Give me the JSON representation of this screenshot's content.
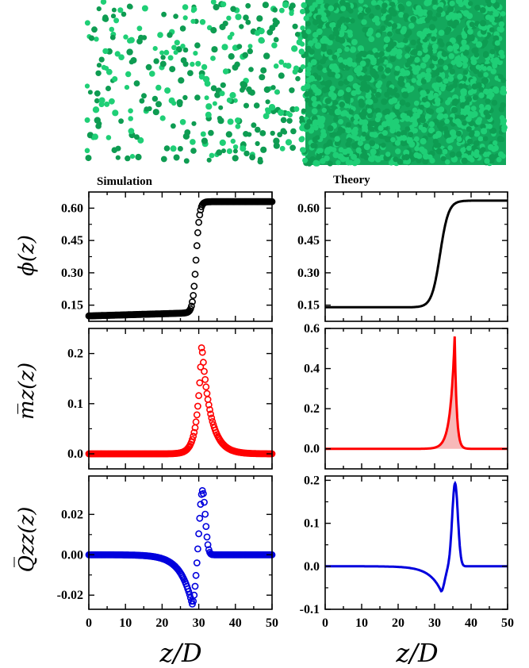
{
  "labels": {
    "simulation": "Simulation",
    "theory": "Theory",
    "xlabel": "z/D"
  },
  "ylabels": {
    "phi": "ϕ(z)",
    "m": "m̅z(z)",
    "q": "Q̅zz(z)"
  },
  "colors": {
    "phi": "#000000",
    "m": "#ff0000",
    "q": "#0000dd",
    "sphere": "#1fcf76",
    "sphere_dark": "#0e9c52"
  },
  "chart_data": [
    {
      "id": "sim-phi",
      "type": "scatter",
      "marker": "open-circle",
      "title": "Simulation",
      "xlabel": "",
      "ylabel": "ϕ(z)",
      "xlim": [
        0,
        50
      ],
      "ylim": [
        0.075,
        0.675
      ],
      "yticks": [
        "0.15",
        "0.30",
        "0.45",
        "0.60"
      ],
      "ytick_values": [
        0.15,
        0.3,
        0.45,
        0.6
      ],
      "profile": {
        "kind": "tanh",
        "low": 0.1,
        "high": 0.63,
        "center": 29.3,
        "width": 0.95,
        "slope": 0.0005
      }
    },
    {
      "id": "sim-m",
      "type": "scatter",
      "marker": "open-circle",
      "xlabel": "",
      "ylabel": "m̅z(z)",
      "xlim": [
        0,
        50
      ],
      "ylim": [
        -0.03,
        0.25
      ],
      "yticks": [
        "0.0",
        "0.1",
        "0.2"
      ],
      "ytick_values": [
        0.0,
        0.1,
        0.2
      ],
      "profile": {
        "kind": "peak",
        "peak": 0.22,
        "center": 30.8,
        "left_width": 1.25,
        "right_width": 2.4
      }
    },
    {
      "id": "sim-q",
      "type": "scatter",
      "marker": "open-circle",
      "xlabel": "z/D",
      "ylabel": "Q̅zz(z)",
      "xlim": [
        0,
        50
      ],
      "ylim": [
        -0.027,
        0.039
      ],
      "yticks": [
        "-0.02",
        "0.00",
        "0.02"
      ],
      "ytick_values": [
        -0.02,
        0.0,
        0.02
      ],
      "xticks": [
        "0",
        "10",
        "20",
        "30",
        "40",
        "50"
      ],
      "profile": {
        "kind": "dip-peak",
        "dip": -0.0245,
        "dip_center": 28.2,
        "peak": 0.032,
        "peak_center": 31.0
      }
    },
    {
      "id": "th-phi",
      "type": "line",
      "title": "Theory",
      "xlabel": "",
      "ylabel": "",
      "xlim": [
        0,
        50
      ],
      "ylim": [
        0.075,
        0.675
      ],
      "yticks": [
        "0.15",
        "0.30",
        "0.45",
        "0.60"
      ],
      "ytick_values": [
        0.15,
        0.3,
        0.45,
        0.6
      ],
      "profile": {
        "kind": "tanh",
        "low": 0.14,
        "high": 0.635,
        "center": 31.5,
        "width": 2.3,
        "slope": 0
      }
    },
    {
      "id": "th-m",
      "type": "area",
      "xlabel": "",
      "ylabel": "",
      "xlim": [
        0,
        50
      ],
      "ylim": [
        -0.1,
        0.6
      ],
      "yticks": [
        "0.0",
        "0.2",
        "0.4",
        "0.6"
      ],
      "ytick_values": [
        0.0,
        0.2,
        0.4,
        0.6
      ],
      "profile": {
        "kind": "peak",
        "peak": 0.56,
        "center": 35.5,
        "left_width": 1.2,
        "right_width": 0.55
      }
    },
    {
      "id": "th-q",
      "type": "line",
      "xlabel": "z/D",
      "ylabel": "",
      "xlim": [
        0,
        50
      ],
      "ylim": [
        -0.1,
        0.21
      ],
      "yticks": [
        "-0.1",
        "0.0",
        "0.1",
        "0.2"
      ],
      "ytick_values": [
        -0.1,
        0.0,
        0.1,
        0.2
      ],
      "xticks": [
        "0",
        "10",
        "20",
        "30",
        "40",
        "50"
      ],
      "profile": {
        "kind": "dip-peak",
        "dip": -0.058,
        "dip_center": 31.8,
        "peak": 0.193,
        "peak_center": 35.6
      }
    }
  ]
}
